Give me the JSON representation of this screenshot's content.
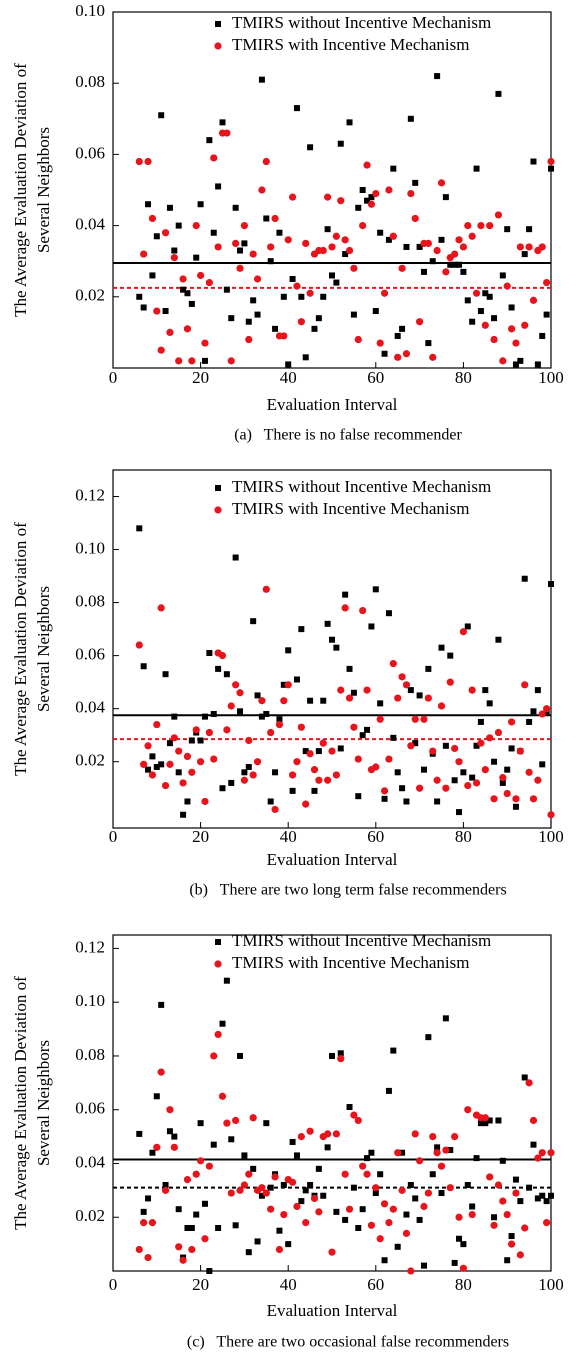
{
  "chart_data": [
    {
      "type": "scatter",
      "caption": "(a)   There is no false recommender",
      "xlabel": "Evaluation Interval",
      "ylabel": [
        "The Average Evaluation Deviation of",
        "Several Neighbors"
      ],
      "xlim": [
        0,
        100
      ],
      "xticks": [
        0,
        20,
        40,
        60,
        80,
        100
      ],
      "ylim": [
        0,
        0.1
      ],
      "yticks": [
        0.02,
        0.04,
        0.06,
        0.08,
        {
          "value": 0.1,
          "label": "0.10"
        }
      ],
      "x": [
        6,
        7,
        8,
        9,
        10,
        11,
        12,
        13,
        14,
        15,
        16,
        17,
        18,
        19,
        20,
        21,
        22,
        23,
        24,
        25,
        26,
        27,
        28,
        29,
        30,
        31,
        32,
        33,
        34,
        35,
        36,
        37,
        38,
        39,
        40,
        41,
        42,
        43,
        44,
        45,
        46,
        47,
        48,
        49,
        50,
        51,
        52,
        53,
        54,
        55,
        56,
        57,
        58,
        59,
        60,
        61,
        62,
        63,
        64,
        65,
        66,
        67,
        68,
        69,
        70,
        71,
        72,
        73,
        74,
        75,
        76,
        77,
        78,
        79,
        80,
        81,
        82,
        83,
        84,
        85,
        86,
        87,
        88,
        89,
        90,
        91,
        92,
        93,
        94,
        95,
        96,
        97,
        98,
        99,
        100
      ],
      "series": [
        {
          "name": "TMIRS without Incentive Mechanism",
          "color": "#000000",
          "marker": "square",
          "values": [
            0.02,
            0.017,
            0.046,
            0.026,
            0.037,
            0.071,
            0.016,
            0.045,
            0.033,
            0.04,
            0.022,
            0.021,
            0.018,
            0.031,
            0.046,
            0.002,
            0.064,
            0.038,
            0.051,
            0.069,
            0.022,
            0.014,
            0.045,
            0.033,
            0.035,
            0.013,
            0.019,
            0.015,
            0.081,
            0.042,
            0.03,
            0.011,
            0.038,
            0.02,
            0.001,
            0.025,
            0.073,
            0.02,
            0.003,
            0.062,
            0.011,
            0.014,
            0.02,
            0.039,
            0.026,
            0.024,
            0.063,
            0.032,
            0.069,
            0.015,
            0.045,
            0.05,
            0.047,
            0.048,
            0.016,
            0.038,
            0.004,
            0.036,
            0.056,
            0.009,
            0.011,
            0.034,
            0.07,
            0.052,
            0.034,
            0.027,
            0.007,
            0.03,
            0.082,
            0.036,
            0.048,
            0.029,
            0.029,
            0.029,
            0.027,
            0.019,
            0.013,
            0.056,
            0.016,
            0.021,
            0.02,
            0.014,
            0.077,
            0.026,
            0.039,
            0.017,
            0.001,
            0.002,
            0.032,
            0.039,
            0.058,
            0.001,
            0.009,
            0.015,
            0.056
          ]
        },
        {
          "name": "TMIRS with Incentive Mechanism",
          "color": "#e8141c",
          "marker": "circle",
          "values": [
            0.058,
            0.032,
            0.058,
            0.042,
            0.016,
            0.005,
            0.038,
            0.01,
            0.031,
            0.002,
            0.025,
            0.011,
            0.002,
            0.04,
            0.026,
            0.007,
            0.024,
            0.059,
            0.034,
            0.066,
            0.066,
            0.002,
            0.035,
            0.028,
            0.04,
            0.008,
            0.032,
            0.025,
            0.05,
            0.058,
            0.034,
            0.042,
            0.009,
            0.009,
            0.036,
            0.048,
            0.023,
            0.013,
            0.035,
            0.021,
            0.032,
            0.033,
            0.033,
            0.048,
            0.034,
            0.037,
            0.047,
            0.036,
            0.033,
            0.028,
            0.008,
            0.04,
            0.057,
            0.046,
            0.049,
            0.007,
            0.021,
            0.05,
            0.037,
            0.003,
            0.028,
            0.004,
            0.049,
            0.042,
            0.013,
            0.035,
            0.035,
            0.003,
            0.033,
            0.052,
            0.027,
            0.031,
            0.032,
            0.036,
            0.034,
            0.04,
            0.037,
            0.021,
            0.04,
            0.012,
            0.04,
            0.008,
            0.043,
            0.002,
            0.023,
            0.011,
            0.007,
            0.034,
            0.012,
            0.034,
            0.019,
            0.033,
            0.034,
            0.024,
            0.058
          ]
        }
      ],
      "hlines": [
        {
          "value": 0.0295,
          "color": "#000000",
          "style": "solid"
        },
        {
          "value": 0.0225,
          "color": "#e8141c",
          "style": "dashed"
        }
      ]
    },
    {
      "type": "scatter",
      "caption": "(b)   There are two long term false recommenders",
      "xlabel": "Evaluation Interval",
      "ylabel": [
        "The Average Evaluation Deviation of",
        "Several Neighbors"
      ],
      "xlim": [
        0,
        100
      ],
      "xticks": [
        0,
        20,
        40,
        60,
        80,
        100
      ],
      "ylim": [
        -0.005,
        0.13
      ],
      "yticks": [
        0.02,
        0.04,
        0.06,
        0.08,
        {
          "value": 0.1,
          "label": "0.10"
        },
        0.12
      ],
      "x": [
        6,
        7,
        8,
        9,
        10,
        11,
        12,
        13,
        14,
        15,
        16,
        17,
        18,
        19,
        20,
        21,
        22,
        23,
        24,
        25,
        26,
        27,
        28,
        29,
        30,
        31,
        32,
        33,
        34,
        35,
        36,
        37,
        38,
        39,
        40,
        41,
        42,
        43,
        44,
        45,
        46,
        47,
        48,
        49,
        50,
        51,
        52,
        53,
        54,
        55,
        56,
        57,
        58,
        59,
        60,
        61,
        62,
        63,
        64,
        65,
        66,
        67,
        68,
        69,
        70,
        71,
        72,
        73,
        74,
        75,
        76,
        77,
        78,
        79,
        80,
        81,
        82,
        83,
        84,
        85,
        86,
        87,
        88,
        89,
        90,
        91,
        92,
        93,
        94,
        95,
        96,
        97,
        98,
        99,
        100
      ],
      "series": [
        {
          "name": "TMIRS without Incentive Mechanism",
          "color": "#000000",
          "marker": "square",
          "values": [
            0.108,
            0.056,
            0.017,
            0.022,
            0.018,
            0.019,
            0.053,
            0.027,
            0.037,
            0.016,
            0.0,
            0.005,
            0.028,
            0.031,
            0.028,
            0.037,
            0.061,
            0.038,
            0.055,
            0.01,
            0.053,
            0.012,
            0.097,
            0.039,
            0.016,
            0.018,
            0.073,
            0.045,
            0.037,
            0.038,
            0.005,
            0.016,
            0.036,
            0.049,
            0.062,
            0.009,
            0.051,
            0.07,
            0.024,
            0.043,
            0.009,
            0.024,
            0.043,
            0.072,
            0.066,
            0.063,
            0.025,
            0.083,
            0.055,
            0.046,
            0.007,
            0.03,
            0.032,
            0.071,
            0.085,
            0.042,
            0.006,
            0.076,
            0.029,
            0.016,
            0.01,
            0.005,
            0.047,
            0.027,
            0.045,
            0.017,
            0.055,
            0.023,
            0.005,
            0.063,
            0.026,
            0.06,
            0.013,
            0.001,
            0.016,
            0.071,
            0.014,
            0.026,
            0.035,
            0.047,
            0.042,
            0.02,
            0.066,
            0.012,
            0.017,
            0.025,
            0.003,
            0.024,
            0.089,
            0.035,
            0.039,
            0.047,
            0.019,
            0.039,
            0.087
          ]
        },
        {
          "name": "TMIRS with Incentive Mechanism",
          "color": "#e8141c",
          "marker": "circle",
          "values": [
            0.064,
            0.019,
            0.026,
            0.015,
            0.034,
            0.078,
            0.011,
            0.019,
            0.029,
            0.024,
            0.012,
            0.022,
            0.016,
            0.032,
            0.02,
            0.005,
            0.031,
            0.021,
            0.061,
            0.06,
            0.032,
            0.041,
            0.049,
            0.046,
            0.013,
            0.028,
            0.015,
            0.02,
            0.043,
            0.085,
            0.031,
            0.002,
            0.034,
            0.043,
            0.049,
            0.015,
            0.02,
            0.033,
            0.004,
            0.023,
            0.017,
            0.013,
            0.027,
            0.013,
            0.024,
            0.015,
            0.047,
            0.078,
            0.044,
            0.033,
            0.021,
            0.077,
            0.047,
            0.017,
            0.018,
            0.036,
            0.009,
            0.021,
            0.057,
            0.044,
            0.052,
            0.049,
            0.026,
            0.036,
            0.01,
            0.036,
            0.044,
            0.024,
            0.013,
            0.041,
            0.01,
            0.05,
            0.025,
            0.02,
            0.069,
            0.011,
            0.047,
            0.012,
            0.027,
            0.017,
            0.029,
            0.006,
            0.031,
            0.014,
            0.008,
            0.035,
            0.006,
            0.024,
            0.049,
            0.016,
            0.006,
            0.013,
            0.038,
            0.04,
            0.0
          ]
        }
      ],
      "hlines": [
        {
          "value": 0.0375,
          "color": "#000000",
          "style": "solid"
        },
        {
          "value": 0.0285,
          "color": "#e8141c",
          "style": "dashed"
        }
      ]
    },
    {
      "type": "scatter",
      "caption": "(c)   There are two occasional false recommenders",
      "xlabel": "Evaluation Interval",
      "ylabel": [
        "The Average Evaluation Deviation of",
        "Several Neighbors"
      ],
      "xlim": [
        0,
        100
      ],
      "xticks": [
        0,
        20,
        40,
        60,
        80,
        100
      ],
      "ylim": [
        0,
        0.125
      ],
      "yticks": [
        0.02,
        0.04,
        0.06,
        0.08,
        {
          "value": 0.1,
          "label": "0.10"
        },
        0.12
      ],
      "x": [
        6,
        7,
        8,
        9,
        10,
        11,
        12,
        13,
        14,
        15,
        16,
        17,
        18,
        19,
        20,
        21,
        22,
        23,
        24,
        25,
        26,
        27,
        28,
        29,
        30,
        31,
        32,
        33,
        34,
        35,
        36,
        37,
        38,
        39,
        40,
        41,
        42,
        43,
        44,
        45,
        46,
        47,
        48,
        49,
        50,
        51,
        52,
        53,
        54,
        55,
        56,
        57,
        58,
        59,
        60,
        61,
        62,
        63,
        64,
        65,
        66,
        67,
        68,
        69,
        70,
        71,
        72,
        73,
        74,
        75,
        76,
        77,
        78,
        79,
        80,
        81,
        82,
        83,
        84,
        85,
        86,
        87,
        88,
        89,
        90,
        91,
        92,
        93,
        94,
        95,
        96,
        97,
        98,
        99,
        100
      ],
      "series": [
        {
          "name": "TMIRS without Incentive Mechanism",
          "color": "#000000",
          "marker": "square",
          "values": [
            0.051,
            0.022,
            0.027,
            0.044,
            0.065,
            0.099,
            0.032,
            0.052,
            0.05,
            0.023,
            0.005,
            0.016,
            0.016,
            0.021,
            0.055,
            0.025,
            0.0,
            0.047,
            0.016,
            0.092,
            0.108,
            0.049,
            0.017,
            0.08,
            0.043,
            0.007,
            0.038,
            0.011,
            0.028,
            0.055,
            0.031,
            0.036,
            0.015,
            0.032,
            0.01,
            0.048,
            0.043,
            0.026,
            0.03,
            0.032,
            0.028,
            0.038,
            0.028,
            0.046,
            0.08,
            0.022,
            0.081,
            0.019,
            0.061,
            0.031,
            0.016,
            0.023,
            0.042,
            0.044,
            0.029,
            0.036,
            0.004,
            0.067,
            0.082,
            0.009,
            0.044,
            0.021,
            0.032,
            0.027,
            0.019,
            0.002,
            0.087,
            0.036,
            0.046,
            0.029,
            0.094,
            0.045,
            0.003,
            0.012,
            0.01,
            0.032,
            0.024,
            0.042,
            0.055,
            0.055,
            0.056,
            0.02,
            0.056,
            0.041,
            0.004,
            0.013,
            0.034,
            0.026,
            0.072,
            0.031,
            0.047,
            0.027,
            0.028,
            0.026,
            0.028
          ]
        },
        {
          "name": "TMIRS with Incentive Mechanism",
          "color": "#e8141c",
          "marker": "circle",
          "values": [
            0.008,
            0.018,
            0.005,
            0.018,
            0.046,
            0.074,
            0.03,
            0.06,
            0.046,
            0.009,
            0.004,
            0.034,
            0.008,
            0.036,
            0.041,
            0.012,
            0.039,
            0.08,
            0.088,
            0.065,
            0.055,
            0.029,
            0.056,
            0.03,
            0.032,
            0.036,
            0.057,
            0.03,
            0.031,
            0.029,
            0.023,
            0.035,
            0.008,
            0.021,
            0.034,
            0.033,
            0.024,
            0.05,
            0.018,
            0.052,
            0.027,
            0.022,
            0.05,
            0.051,
            0.007,
            0.051,
            0.079,
            0.036,
            0.023,
            0.058,
            0.056,
            0.039,
            0.036,
            0.017,
            0.031,
            0.012,
            0.025,
            0.018,
            0.023,
            0.044,
            0.03,
            0.014,
            0.0,
            0.051,
            0.041,
            0.024,
            0.029,
            0.05,
            0.044,
            0.039,
            0.045,
            0.031,
            0.05,
            0.02,
            0.001,
            0.06,
            0.021,
            0.058,
            0.057,
            0.057,
            0.035,
            0.017,
            0.032,
            0.026,
            0.021,
            0.01,
            0.029,
            0.006,
            0.016,
            0.07,
            0.056,
            0.042,
            0.044,
            0.018,
            0.044
          ]
        }
      ],
      "hlines": [
        {
          "value": 0.0415,
          "color": "#000000",
          "style": "solid"
        },
        {
          "value": 0.031,
          "color": "#000000",
          "style": "dashed"
        }
      ]
    }
  ]
}
